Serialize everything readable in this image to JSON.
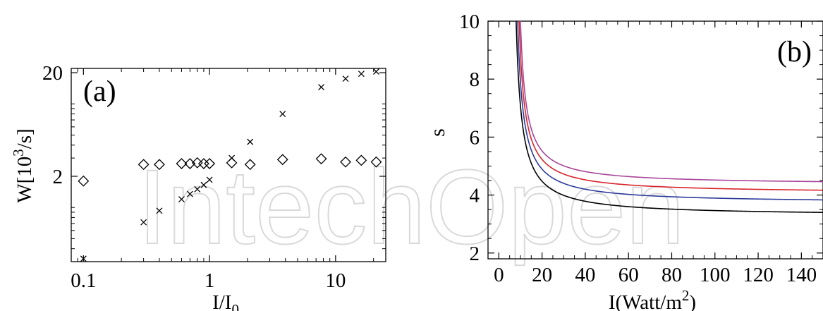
{
  "watermark": "IntechOpen",
  "chart_data": [
    {
      "type": "scatter",
      "panel_label": "(a)",
      "xlabel": "I/I",
      "xlabel_sub": "0",
      "ylabel": "W[10",
      "ylabel_sup": "3",
      "ylabel_tail": "/s]",
      "xscale": "log",
      "yscale": "log",
      "xlim": [
        0.08,
        25
      ],
      "ylim": [
        0.3,
        22
      ],
      "xticks": [
        0.1,
        1,
        10
      ],
      "xtick_labels": [
        "0.1",
        "1",
        "10"
      ],
      "yticks": [
        2,
        20
      ],
      "ytick_labels": [
        "2",
        "20"
      ],
      "grid": false,
      "series": [
        {
          "marker": "diamond",
          "points": [
            [
              0.1,
              1.8
            ],
            [
              0.3,
              2.6
            ],
            [
              0.4,
              2.6
            ],
            [
              0.6,
              2.65
            ],
            [
              0.7,
              2.65
            ],
            [
              0.8,
              2.7
            ],
            [
              0.9,
              2.65
            ],
            [
              1.0,
              2.65
            ],
            [
              1.5,
              2.7
            ],
            [
              2.1,
              2.6
            ],
            [
              3.8,
              2.9
            ],
            [
              7.7,
              2.95
            ],
            [
              12,
              2.75
            ],
            [
              16,
              2.85
            ],
            [
              21,
              2.75
            ]
          ]
        },
        {
          "marker": "cross",
          "points": [
            [
              0.1,
              0.32
            ],
            [
              0.3,
              0.72
            ],
            [
              0.4,
              0.93
            ],
            [
              0.6,
              1.2
            ],
            [
              0.7,
              1.35
            ],
            [
              0.8,
              1.5
            ],
            [
              0.9,
              1.65
            ],
            [
              1.0,
              1.85
            ],
            [
              1.5,
              3.0
            ],
            [
              2.1,
              4.3
            ],
            [
              3.8,
              8.0
            ],
            [
              7.7,
              14.5
            ],
            [
              12,
              17.5
            ],
            [
              16,
              19.5
            ],
            [
              21,
              20.5
            ]
          ]
        }
      ]
    },
    {
      "type": "line",
      "panel_label": "(b)",
      "xlabel": "I(Watt/m",
      "xlabel_sup": "2",
      "xlabel_tail": ")",
      "ylabel": "s",
      "xlim": [
        -5,
        150
      ],
      "ylim": [
        1.8,
        10
      ],
      "xticks": [
        0,
        20,
        40,
        60,
        80,
        100,
        120,
        140
      ],
      "xtick_labels": [
        "0",
        "20",
        "40",
        "60",
        "80",
        "100",
        "120",
        "140"
      ],
      "yticks": [
        2,
        4,
        6,
        8,
        10
      ],
      "ytick_labels": [
        "2",
        "4",
        "6",
        "8",
        "10"
      ],
      "grid": false,
      "series": [
        {
          "color": "#000000",
          "asymptote": 3.28,
          "x0": 8.0
        },
        {
          "color": "#2b3a9a",
          "asymptote": 3.72,
          "x0": 8.7
        },
        {
          "color": "#d8232a",
          "asymptote": 4.06,
          "x0": 9.4
        },
        {
          "color": "#a8459a",
          "asymptote": 4.36,
          "x0": 10.0
        }
      ]
    }
  ]
}
